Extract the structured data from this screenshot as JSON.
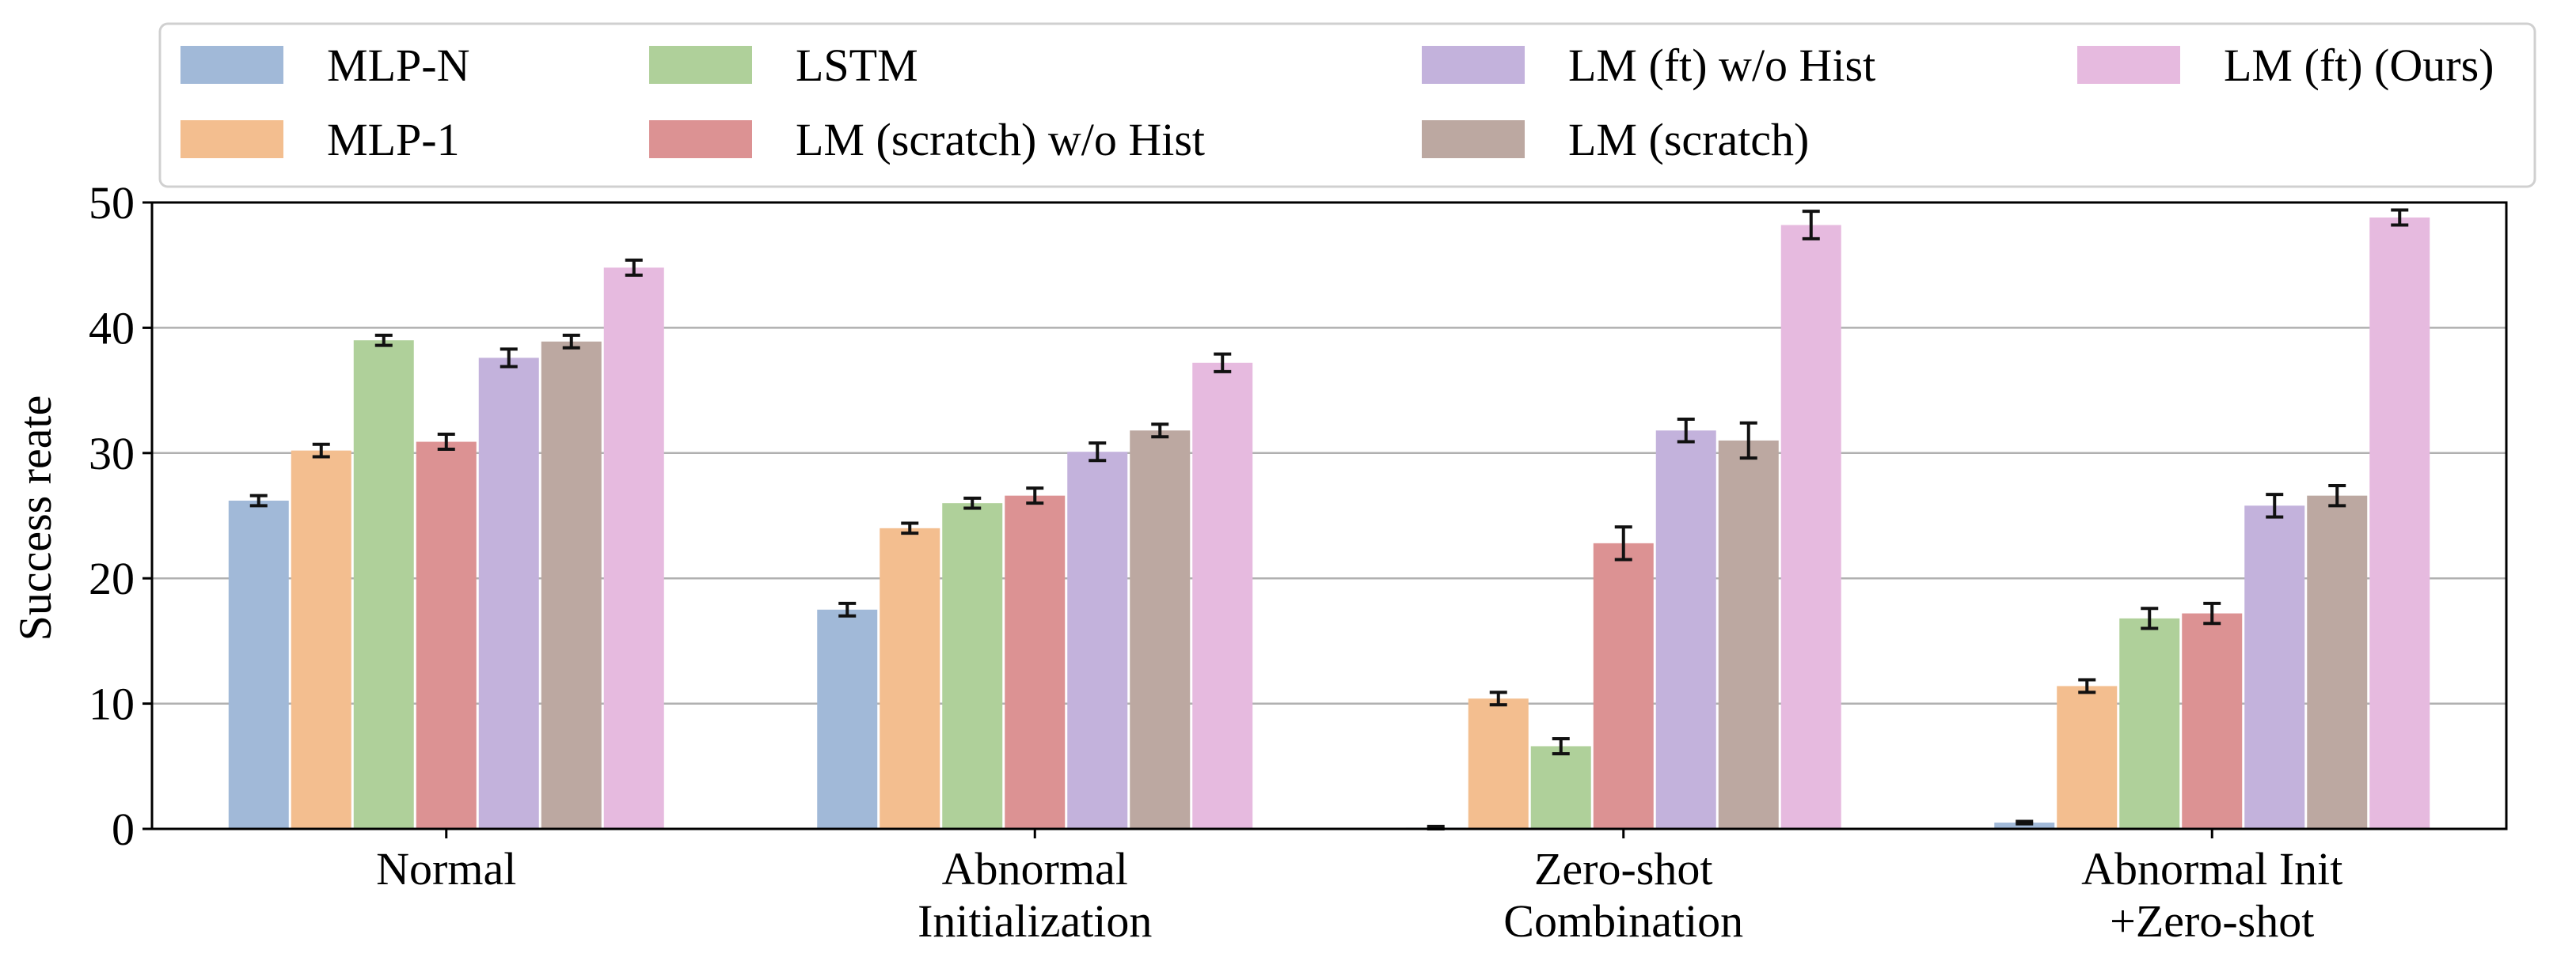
{
  "chart_data": {
    "type": "bar",
    "title": "",
    "xlabel": "",
    "ylabel": "Success reate",
    "ylim": [
      0,
      50
    ],
    "yticks": [
      0,
      10,
      20,
      30,
      40,
      50
    ],
    "grid": "horizontal",
    "legend_position": "top",
    "categories": [
      [
        "Normal"
      ],
      [
        "Abnormal",
        "Initialization"
      ],
      [
        "Zero-shot",
        "Combination"
      ],
      [
        "Abnormal Init",
        "+Zero-shot"
      ]
    ],
    "series": [
      {
        "name": "MLP-N",
        "color": "#a1b9d8",
        "values": [
          26.2,
          17.5,
          0.1,
          0.5
        ],
        "errors": [
          0.4,
          0.5,
          0.1,
          0.1
        ]
      },
      {
        "name": "MLP-1",
        "color": "#f3be8f",
        "values": [
          30.2,
          24.0,
          10.4,
          11.4
        ],
        "errors": [
          0.5,
          0.4,
          0.5,
          0.5
        ]
      },
      {
        "name": "LSTM",
        "color": "#afd09a",
        "values": [
          39.0,
          26.0,
          6.6,
          16.8
        ],
        "errors": [
          0.4,
          0.4,
          0.6,
          0.8
        ]
      },
      {
        "name": "LM (scratch) w/o Hist",
        "color": "#dc9293",
        "values": [
          30.9,
          26.6,
          22.8,
          17.2
        ],
        "errors": [
          0.6,
          0.6,
          1.3,
          0.8
        ]
      },
      {
        "name": "LM (ft) w/o Hist",
        "color": "#c3b2dc",
        "values": [
          37.6,
          30.1,
          31.8,
          25.8
        ],
        "errors": [
          0.7,
          0.7,
          0.9,
          0.9
        ]
      },
      {
        "name": "LM (scratch)",
        "color": "#bca8a1",
        "values": [
          38.9,
          31.8,
          31.0,
          26.6
        ],
        "errors": [
          0.5,
          0.5,
          1.4,
          0.8
        ]
      },
      {
        "name": "LM (ft) (Ours)",
        "color": "#e6badf",
        "values": [
          44.8,
          37.2,
          48.2,
          48.8
        ],
        "errors": [
          0.6,
          0.7,
          1.1,
          0.6
        ]
      }
    ],
    "legend_order": [
      0,
      1,
      2,
      3,
      4,
      5,
      6
    ]
  }
}
